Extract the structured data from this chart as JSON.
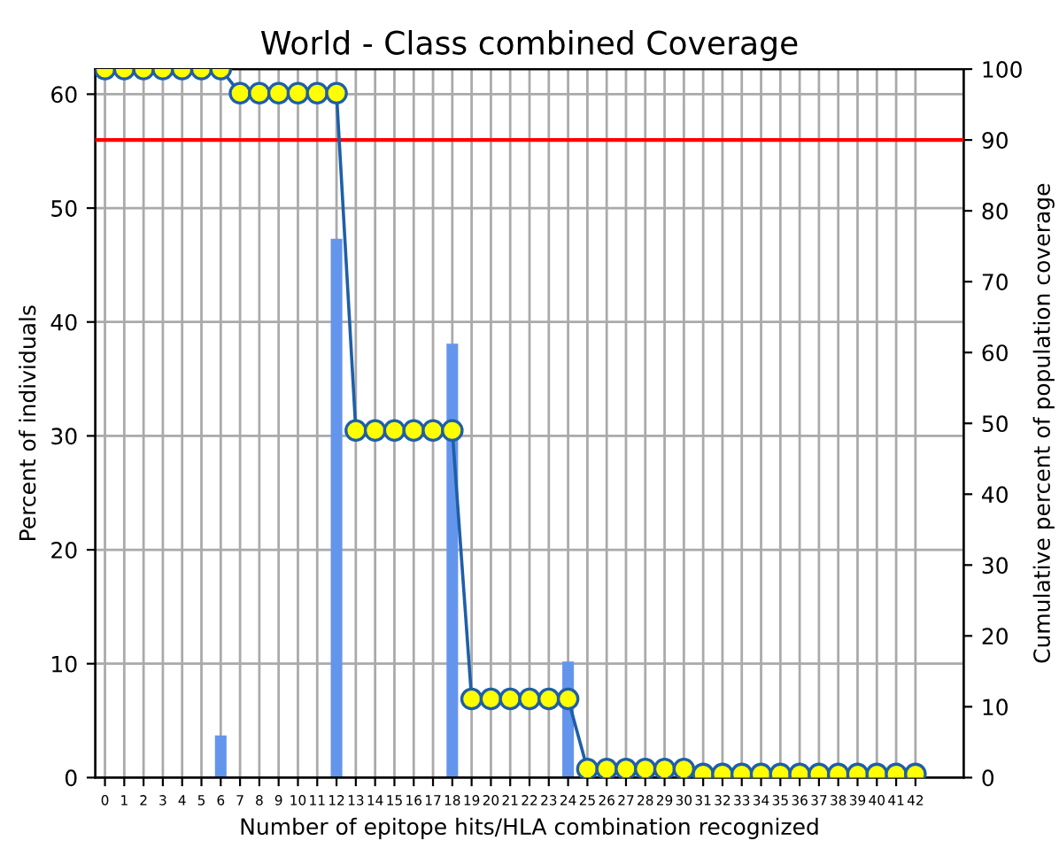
{
  "chart_data": {
    "type": "bar",
    "title": "World - Class combined Coverage",
    "xlabel": "Number of epitope hits/HLA combination recognized",
    "ylabel": "Percent of individuals",
    "y2label": "Cumulative percent of population coverage",
    "x": [
      0,
      1,
      2,
      3,
      4,
      5,
      6,
      7,
      8,
      9,
      10,
      11,
      12,
      13,
      14,
      15,
      16,
      17,
      18,
      19,
      20,
      21,
      22,
      23,
      24,
      25,
      26,
      27,
      28,
      29,
      30,
      31,
      32,
      33,
      34,
      35,
      36,
      37,
      38,
      39,
      40,
      41,
      42
    ],
    "xlim": [
      -0.5,
      44.5
    ],
    "xticks": [
      0,
      1,
      2,
      3,
      4,
      5,
      6,
      7,
      8,
      9,
      10,
      11,
      12,
      13,
      14,
      15,
      16,
      17,
      18,
      19,
      20,
      21,
      22,
      23,
      24,
      25,
      26,
      27,
      28,
      29,
      30,
      31,
      32,
      33,
      34,
      35,
      36,
      37,
      38,
      39,
      40,
      41,
      42
    ],
    "ylim": [
      0,
      62.2
    ],
    "yticks": [
      0,
      10,
      20,
      30,
      40,
      50,
      60
    ],
    "y2lim": [
      0,
      100
    ],
    "y2ticks": [
      0,
      10,
      20,
      30,
      40,
      50,
      60,
      70,
      80,
      90,
      100
    ],
    "series": [
      {
        "color": "#6495ed",
        "values": [
          0,
          0,
          0,
          0,
          0,
          0,
          3.7,
          0,
          0,
          0,
          0,
          0,
          47.3,
          0,
          0,
          0,
          0,
          0,
          38.1,
          0,
          0,
          0,
          0,
          0,
          10.2,
          0,
          0,
          0,
          0,
          0,
          0,
          0,
          0,
          0,
          0,
          0,
          0,
          0,
          0,
          0,
          0,
          0,
          0
        ]
      },
      {
        "type": "line",
        "axis": "y2",
        "color": "#1f5fa8",
        "marker": "circle",
        "values": [
          100,
          100,
          100,
          100,
          100,
          100,
          100,
          96.6,
          96.6,
          96.6,
          96.6,
          96.6,
          96.6,
          49,
          49,
          49,
          49,
          49,
          49,
          11.1,
          11.1,
          11.1,
          11.1,
          11.1,
          11.1,
          1.2,
          1.2,
          1.2,
          1.2,
          1.2,
          1.2,
          0.5,
          0.5,
          0.5,
          0.5,
          0.5,
          0.5,
          0.5,
          0.5,
          0.5,
          0.5,
          0.5,
          0.5
        ]
      }
    ],
    "ref_lines": [
      {
        "axis": "y2",
        "value": 90,
        "color": "#ff0000"
      }
    ],
    "grid": true
  }
}
